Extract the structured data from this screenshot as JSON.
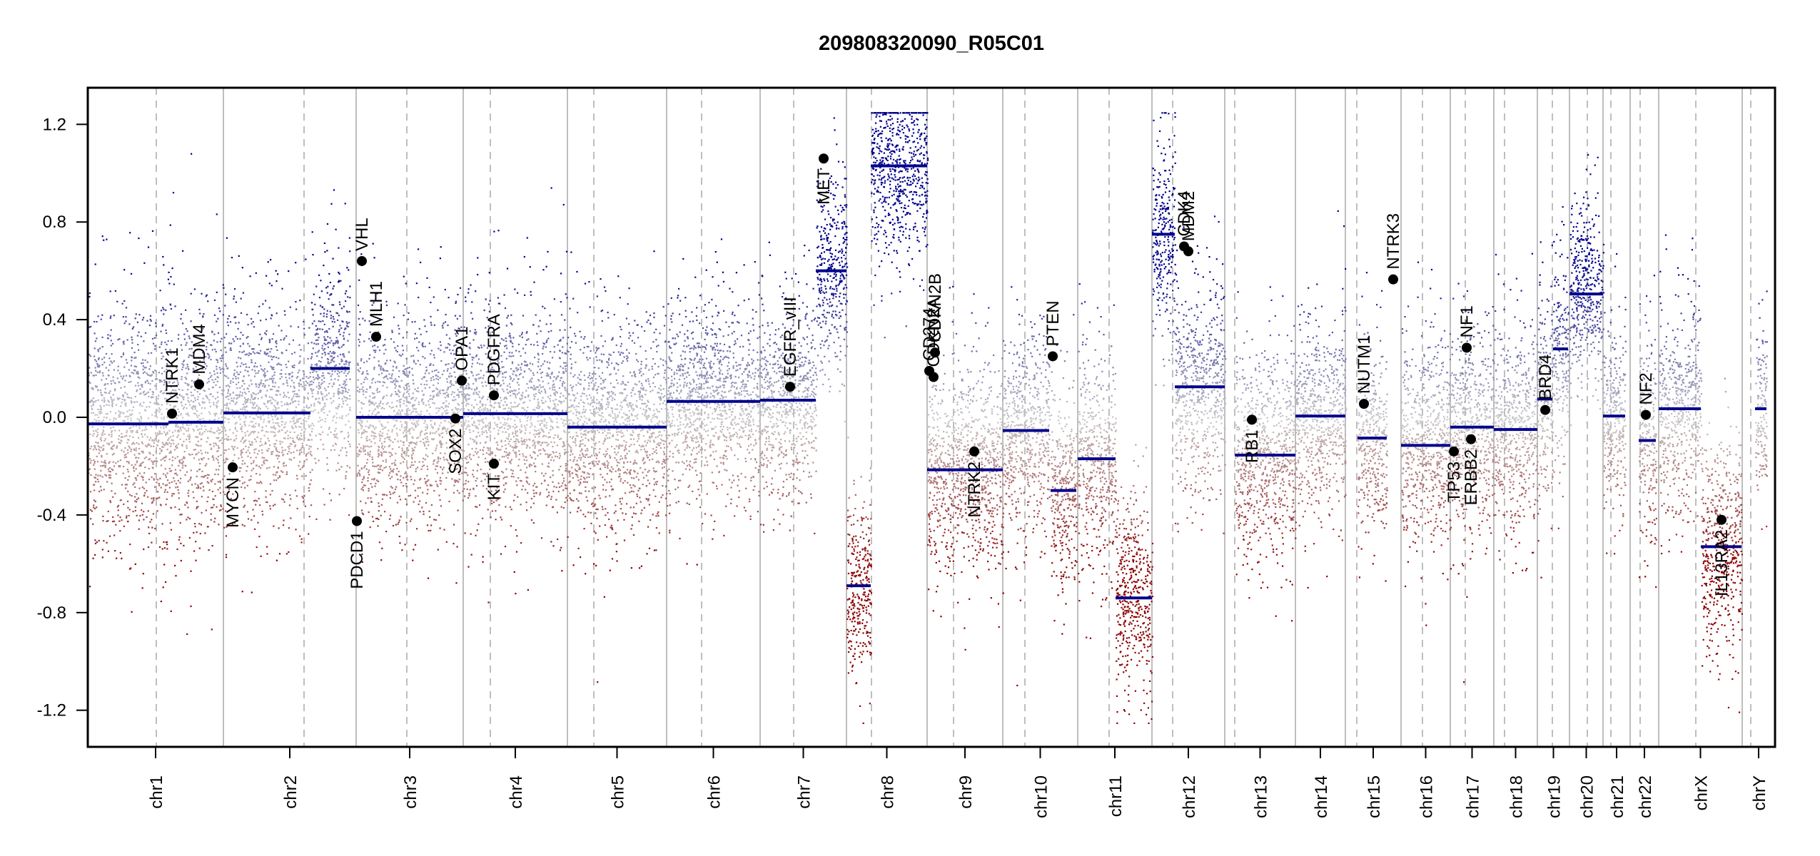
{
  "chart_data": {
    "type": "scatter",
    "title": "209808320090_R05C01",
    "xlabel": "",
    "ylabel": "",
    "ylim": [
      -1.35,
      1.35
    ],
    "y_ticks": [
      1.2,
      0.8,
      0.4,
      0.0,
      -0.4,
      -0.8,
      -1.2
    ],
    "y_tick_labels": [
      "1.2",
      "0.8",
      "0.4",
      "0.0",
      "-0.4",
      "-0.8",
      "-1.2"
    ],
    "grid": false,
    "legend": "none",
    "colors": {
      "gain": "#00008b",
      "neutral": "#c8c8c8",
      "loss": "#8b0000",
      "segment": "#00008b",
      "gene_marker": "#000000",
      "boundary": "#bebebe",
      "centromere": "#bebebe"
    },
    "chromosomes": [
      {
        "name": "chr1",
        "label": "chr1",
        "start": 0,
        "end": 190,
        "centromere": 96
      },
      {
        "name": "chr2",
        "label": "chr2",
        "start": 190,
        "end": 376,
        "centromere": 113
      },
      {
        "name": "chr3",
        "label": "chr3",
        "start": 376,
        "end": 526,
        "centromere": 71
      },
      {
        "name": "chr4",
        "label": "chr4",
        "start": 526,
        "end": 672,
        "centromere": 38
      },
      {
        "name": "chr5",
        "label": "chr5",
        "start": 672,
        "end": 811,
        "centromere": 37
      },
      {
        "name": "chr6",
        "label": "chr6",
        "start": 811,
        "end": 942,
        "centromere": 49
      },
      {
        "name": "chr7",
        "label": "chr7",
        "start": 942,
        "end": 1063,
        "centromere": 47
      },
      {
        "name": "chr8",
        "label": "chr8",
        "start": 1063,
        "end": 1176,
        "centromere": 35
      },
      {
        "name": "chr9",
        "label": "chr9",
        "start": 1176,
        "end": 1282,
        "centromere": 37
      },
      {
        "name": "chr10",
        "label": "chr10",
        "start": 1282,
        "end": 1387,
        "centromere": 31
      },
      {
        "name": "chr11",
        "label": "chr11",
        "start": 1387,
        "end": 1491,
        "centromere": 44
      },
      {
        "name": "chr12",
        "label": "chr12",
        "start": 1491,
        "end": 1593,
        "centromere": 29
      },
      {
        "name": "chr13",
        "label": "chr13",
        "start": 1593,
        "end": 1692,
        "centromere": 14
      },
      {
        "name": "chr14",
        "label": "chr14",
        "start": 1692,
        "end": 1762,
        "centromere": 0
      },
      {
        "name": "chr15",
        "label": "chr15",
        "start": 1762,
        "end": 1840,
        "centromere": 16
      },
      {
        "name": "chr16",
        "label": "chr16",
        "start": 1840,
        "end": 1909,
        "centromere": 30
      },
      {
        "name": "chr17",
        "label": "chr17",
        "start": 1909,
        "end": 1970,
        "centromere": 21
      },
      {
        "name": "chr18",
        "label": "chr18",
        "start": 1970,
        "end": 2031,
        "centromere": 15
      },
      {
        "name": "chr19",
        "label": "chr19",
        "start": 2031,
        "end": 2076,
        "centromere": 21
      },
      {
        "name": "chr20",
        "label": "chr20",
        "start": 2076,
        "end": 2123,
        "centromere": 25
      },
      {
        "name": "chr21",
        "label": "chr21",
        "start": 2123,
        "end": 2161,
        "centromere": 11
      },
      {
        "name": "chr22",
        "label": "chr22",
        "start": 2161,
        "end": 2201,
        "centromere": 14
      },
      {
        "name": "chrX",
        "label": "chrX",
        "start": 2201,
        "end": 2318,
        "centromere": 52
      },
      {
        "name": "chrY",
        "label": "chrY",
        "start": 2318,
        "end": 2364,
        "centromere": 12
      }
    ],
    "segments": [
      {
        "chrom": "chr1",
        "start": 0,
        "end": 113,
        "value": -0.027
      },
      {
        "chrom": "chr1",
        "start": 113,
        "end": 190,
        "value": -0.02
      },
      {
        "chrom": "chr2",
        "start": 190,
        "end": 312,
        "value": 0.018
      },
      {
        "chrom": "chr2",
        "start": 312,
        "end": 367,
        "value": 0.2
      },
      {
        "chrom": "chr3",
        "start": 376,
        "end": 526,
        "value": 0.0
      },
      {
        "chrom": "chr4",
        "start": 526,
        "end": 672,
        "value": 0.015
      },
      {
        "chrom": "chr5",
        "start": 672,
        "end": 811,
        "value": -0.04
      },
      {
        "chrom": "chr6",
        "start": 811,
        "end": 942,
        "value": 0.065
      },
      {
        "chrom": "chr7",
        "start": 942,
        "end": 1020,
        "value": 0.07
      },
      {
        "chrom": "chr7",
        "start": 1020,
        "end": 1063,
        "value": 0.6
      },
      {
        "chrom": "chr8",
        "start": 1063,
        "end": 1097,
        "value": -0.69
      },
      {
        "chrom": "chr8",
        "start": 1097,
        "end": 1176,
        "value": 1.03
      },
      {
        "chrom": "chr9",
        "start": 1176,
        "end": 1282,
        "value": -0.215
      },
      {
        "chrom": "chr10",
        "start": 1282,
        "end": 1347,
        "value": -0.054
      },
      {
        "chrom": "chr10",
        "start": 1349,
        "end": 1385,
        "value": -0.3
      },
      {
        "chrom": "chr11",
        "start": 1387,
        "end": 1440,
        "value": -0.17
      },
      {
        "chrom": "chr11",
        "start": 1440,
        "end": 1491,
        "value": -0.74
      },
      {
        "chrom": "chr12",
        "start": 1491,
        "end": 1523,
        "value": 0.75
      },
      {
        "chrom": "chr12",
        "start": 1523,
        "end": 1593,
        "value": 0.125
      },
      {
        "chrom": "chr13",
        "start": 1607,
        "end": 1692,
        "value": -0.155
      },
      {
        "chrom": "chr14",
        "start": 1692,
        "end": 1762,
        "value": 0.005
      },
      {
        "chrom": "chr15",
        "start": 1779,
        "end": 1820,
        "value": -0.085
      },
      {
        "chrom": "chr16",
        "start": 1840,
        "end": 1909,
        "value": -0.115
      },
      {
        "chrom": "chr17",
        "start": 1909,
        "end": 1970,
        "value": -0.04
      },
      {
        "chrom": "chr18",
        "start": 1970,
        "end": 2031,
        "value": -0.05
      },
      {
        "chrom": "chr19",
        "start": 2031,
        "end": 2052,
        "value": 0.075
      },
      {
        "chrom": "chr19",
        "start": 2053,
        "end": 2074,
        "value": 0.28
      },
      {
        "chrom": "chr20",
        "start": 2076,
        "end": 2123,
        "value": 0.505
      },
      {
        "chrom": "chr21",
        "start": 2123,
        "end": 2154,
        "value": 0.005
      },
      {
        "chrom": "chr22",
        "start": 2173,
        "end": 2197,
        "value": -0.095
      },
      {
        "chrom": "chrX",
        "start": 2201,
        "end": 2260,
        "value": 0.035
      },
      {
        "chrom": "chrX",
        "start": 2260,
        "end": 2317,
        "value": -0.53
      },
      {
        "chrom": "chrY",
        "start": 2336,
        "end": 2352,
        "value": 0.035
      }
    ],
    "genes": [
      {
        "name": "NTRK1",
        "pos": 118,
        "value": 0.015,
        "label_side": "above"
      },
      {
        "name": "MDM4",
        "pos": 156,
        "value": 0.135,
        "label_side": "above"
      },
      {
        "name": "MYCN",
        "pos": 203,
        "value": -0.205,
        "label_side": "below"
      },
      {
        "name": "PDCD1",
        "pos": 377,
        "value": -0.425,
        "label_side": "below"
      },
      {
        "name": "VHL",
        "pos": 384,
        "value": 0.64,
        "label_side": "above"
      },
      {
        "name": "MLH1",
        "pos": 404,
        "value": 0.33,
        "label_side": "above"
      },
      {
        "name": "OPA1",
        "pos": 524,
        "value": 0.15,
        "label_side": "above"
      },
      {
        "name": "SOX2",
        "pos": 515,
        "value": -0.005,
        "label_side": "below"
      },
      {
        "name": "PDGFRA",
        "pos": 569,
        "value": 0.09,
        "label_side": "above"
      },
      {
        "name": "KIT",
        "pos": 569,
        "value": -0.19,
        "label_side": "below"
      },
      {
        "name": "EGFR_vIII",
        "pos": 984,
        "value": 0.125,
        "label_side": "above"
      },
      {
        "name": "MET",
        "pos": 1031,
        "value": 1.06,
        "label_side": "below"
      },
      {
        "name": "CD274",
        "pos": 1179,
        "value": 0.19,
        "label_side": "above"
      },
      {
        "name": "CDKN2A",
        "pos": 1185,
        "value": 0.165,
        "label_side": "above"
      },
      {
        "name": "CDKN2B",
        "pos": 1187,
        "value": 0.265,
        "label_side": "above"
      },
      {
        "name": "NTRK2",
        "pos": 1242,
        "value": -0.14,
        "label_side": "below"
      },
      {
        "name": "PTEN",
        "pos": 1352,
        "value": 0.25,
        "label_side": "above"
      },
      {
        "name": "CDK4",
        "pos": 1536,
        "value": 0.7,
        "label_side": "above"
      },
      {
        "name": "MDM2",
        "pos": 1542,
        "value": 0.68,
        "label_side": "above"
      },
      {
        "name": "RB1",
        "pos": 1631,
        "value": -0.01,
        "label_side": "below"
      },
      {
        "name": "NUTM1",
        "pos": 1788,
        "value": 0.055,
        "label_side": "above"
      },
      {
        "name": "NTRK3",
        "pos": 1829,
        "value": 0.565,
        "label_side": "above"
      },
      {
        "name": "TP53",
        "pos": 1914,
        "value": -0.14,
        "label_side": "below"
      },
      {
        "name": "NF1",
        "pos": 1932,
        "value": 0.285,
        "label_side": "above"
      },
      {
        "name": "ERBB2",
        "pos": 1938,
        "value": -0.09,
        "label_side": "below"
      },
      {
        "name": "BRD4",
        "pos": 2042,
        "value": 0.03,
        "label_side": "above"
      },
      {
        "name": "NF2",
        "pos": 2183,
        "value": 0.01,
        "label_side": "above"
      },
      {
        "name": "IL13RA2",
        "pos": 2289,
        "value": -0.42,
        "label_side": "below"
      }
    ],
    "point_cloud": {
      "description": "Per-probe log2 ratio points colored blue (gain) to grey (neutral) to red (loss); values clipped to [-1.25, 1.25]",
      "clip": [
        -1.25,
        1.25
      ],
      "spread_by_chrom": {
        "chr1": 0.26,
        "chr2": 0.22,
        "chr3": 0.22,
        "chr4": 0.22,
        "chr5": 0.22,
        "chr6": 0.2,
        "chr7": 0.2,
        "chr8": 0.2,
        "chr9": 0.22,
        "chr10": 0.22,
        "chr11": 0.22,
        "chr12": 0.22,
        "chr13": 0.22,
        "chr14": 0.2,
        "chr15": 0.2,
        "chr16": 0.22,
        "chr17": 0.22,
        "chr18": 0.22,
        "chr19": 0.22,
        "chr20": 0.2,
        "chr21": 0.2,
        "chr22": 0.22,
        "chrX": 0.22,
        "chrY": 0.2
      }
    }
  }
}
